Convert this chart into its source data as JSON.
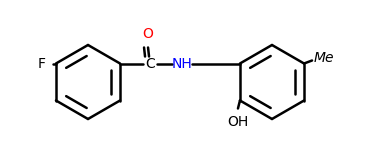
{
  "bg_color": "#ffffff",
  "line_color": "#000000",
  "text_color": "#000000",
  "o_color": "#ff0000",
  "nh_color": "#0000cd",
  "oh_color": "#000000",
  "label_F": "F",
  "label_O": "O",
  "label_C": "C",
  "label_NH": "NH",
  "label_OH": "OH",
  "label_Me": "Me",
  "font_size": 10,
  "line_width": 1.8,
  "figsize": [
    3.73,
    1.65
  ],
  "dpi": 100
}
